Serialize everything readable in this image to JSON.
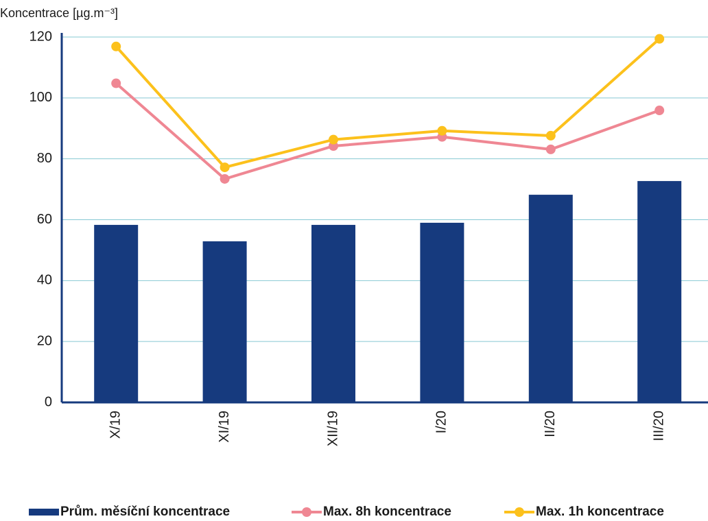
{
  "chart_data": {
    "type": "bar-line",
    "y_label": "Koncentrace [µg.m⁻³]",
    "categories": [
      "X/19",
      "XI/19",
      "XII/19",
      "I/20",
      "II/20",
      "III/20"
    ],
    "series": [
      {
        "name": "Prům. měsíční koncentrace",
        "type": "bar",
        "color": "#163a7e",
        "values": [
          58.3,
          52.9,
          58.3,
          59.0,
          68.2,
          72.7
        ]
      },
      {
        "name": "Max. 8h koncentrace",
        "type": "line",
        "color": "#ef8793",
        "values": [
          104.8,
          73.4,
          84.2,
          87.2,
          83.1,
          95.9
        ]
      },
      {
        "name": "Max. 1h koncentrace",
        "type": "line",
        "color": "#fcc11c",
        "values": [
          116.9,
          77.2,
          86.3,
          89.2,
          87.6,
          119.4
        ]
      }
    ],
    "ylim": [
      0,
      120
    ],
    "yticks": [
      0,
      20,
      40,
      60,
      80,
      100,
      120
    ],
    "grid": true
  }
}
